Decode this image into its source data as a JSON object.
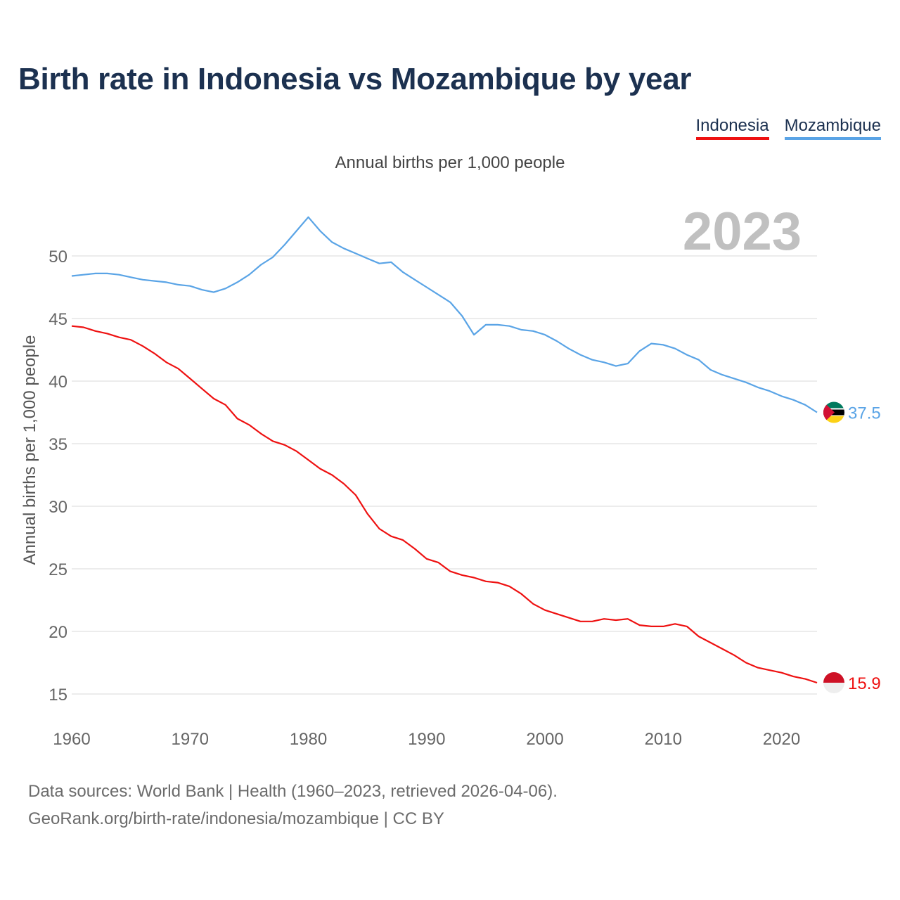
{
  "header": {
    "title": "Birth rate in Indonesia vs Mozambique by year",
    "subtitle": "Annual births per 1,000 people",
    "year_label": "2023"
  },
  "legend": [
    {
      "label": "Indonesia",
      "color": "#ee1111"
    },
    {
      "label": "Mozambique",
      "color": "#5aa4e6"
    }
  ],
  "footer": {
    "line1": "Data sources: World Bank | Health (1960–2023, retrieved 2026-04-06).",
    "line2": "GeoRank.org/birth-rate/indonesia/mozambique | CC BY"
  },
  "chart_data": {
    "type": "line",
    "title": "Birth rate in Indonesia vs Mozambique by year",
    "ylabel": "Annual births per 1,000 people",
    "xlabel": "",
    "xlim": [
      1960,
      2023
    ],
    "ylim": [
      14,
      54
    ],
    "x_ticks": [
      1960,
      1970,
      1980,
      1990,
      2000,
      2010,
      2020
    ],
    "y_ticks": [
      15,
      20,
      25,
      30,
      35,
      40,
      45,
      50
    ],
    "x": [
      1960,
      1961,
      1962,
      1963,
      1964,
      1965,
      1966,
      1967,
      1968,
      1969,
      1970,
      1971,
      1972,
      1973,
      1974,
      1975,
      1976,
      1977,
      1978,
      1979,
      1980,
      1981,
      1982,
      1983,
      1984,
      1985,
      1986,
      1987,
      1988,
      1989,
      1990,
      1991,
      1992,
      1993,
      1994,
      1995,
      1996,
      1997,
      1998,
      1999,
      2000,
      2001,
      2002,
      2003,
      2004,
      2005,
      2006,
      2007,
      2008,
      2009,
      2010,
      2011,
      2012,
      2013,
      2014,
      2015,
      2016,
      2017,
      2018,
      2019,
      2020,
      2021,
      2022,
      2023
    ],
    "series": [
      {
        "name": "Indonesia",
        "color": "#ee1111",
        "end_label": "15.9",
        "values": [
          44.4,
          44.3,
          44.0,
          43.8,
          43.5,
          43.3,
          42.8,
          42.2,
          41.5,
          41.0,
          40.2,
          39.4,
          38.6,
          38.1,
          37.0,
          36.5,
          35.8,
          35.2,
          34.9,
          34.4,
          33.7,
          33.0,
          32.5,
          31.8,
          30.9,
          29.4,
          28.2,
          27.6,
          27.3,
          26.6,
          25.8,
          25.5,
          24.8,
          24.5,
          24.3,
          24.0,
          23.9,
          23.6,
          23.0,
          22.2,
          21.7,
          21.4,
          21.1,
          20.8,
          20.8,
          21.0,
          20.9,
          21.0,
          20.5,
          20.4,
          20.4,
          20.6,
          20.4,
          19.6,
          19.1,
          18.6,
          18.1,
          17.5,
          17.1,
          16.9,
          16.7,
          16.4,
          16.2,
          15.9
        ]
      },
      {
        "name": "Mozambique",
        "color": "#5aa4e6",
        "end_label": "37.5",
        "values": [
          48.4,
          48.5,
          48.6,
          48.6,
          48.5,
          48.3,
          48.1,
          48.0,
          47.9,
          47.7,
          47.6,
          47.3,
          47.1,
          47.4,
          47.9,
          48.5,
          49.3,
          49.9,
          50.9,
          52.0,
          53.1,
          52.0,
          51.1,
          50.6,
          50.2,
          49.8,
          49.4,
          49.5,
          48.7,
          48.1,
          47.5,
          46.9,
          46.3,
          45.2,
          43.7,
          44.5,
          44.5,
          44.4,
          44.1,
          44.0,
          43.7,
          43.2,
          42.6,
          42.1,
          41.7,
          41.5,
          41.2,
          41.4,
          42.4,
          43.0,
          42.9,
          42.6,
          42.1,
          41.7,
          40.9,
          40.5,
          40.2,
          39.9,
          39.5,
          39.2,
          38.8,
          38.5,
          38.1,
          37.5
        ]
      }
    ]
  }
}
